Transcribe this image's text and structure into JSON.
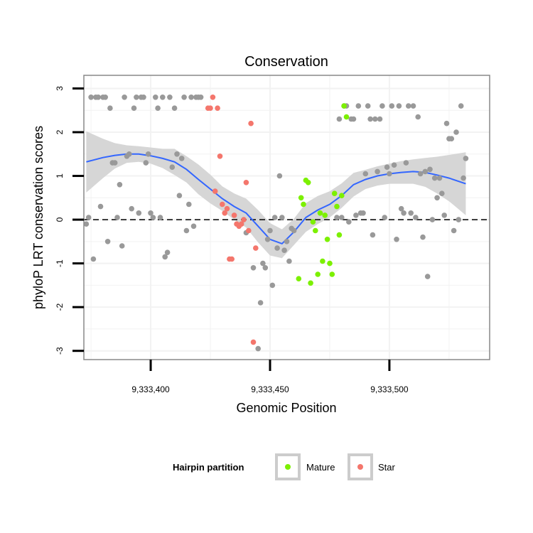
{
  "chart_data": {
    "type": "scatter",
    "title": "Conservation",
    "xlabel": "Genomic Position",
    "ylabel": "phyloP LRT conservation scores",
    "xlim": [
      9333372,
      9333542
    ],
    "ylim": [
      -3.2,
      3.3
    ],
    "x_ticks": [
      9333400,
      9333450,
      9333500
    ],
    "x_tick_labels": [
      "9,333,400",
      "9,333,450",
      "9,333,500"
    ],
    "y_ticks": [
      -3,
      -2,
      -1,
      0,
      1,
      2,
      3
    ],
    "y_tick_labels": [
      "-3",
      "-2",
      "-1",
      "0",
      "1",
      "2",
      "3"
    ],
    "reference_line": {
      "y": 0,
      "style": "dashed"
    },
    "colors": {
      "other": "#999999",
      "mature": "#7cf000",
      "star": "#f4766c",
      "smooth": "#3366ff",
      "ribbon": "#d6d6d6",
      "panel_border": "#888888",
      "grid": "#f2f2f2"
    },
    "legend": {
      "title": "Hairpin partition",
      "position": "bottom",
      "entries": [
        {
          "label": "Mature",
          "color": "#7cf000"
        },
        {
          "label": "Star",
          "color": "#f4766c"
        }
      ]
    },
    "series": [
      {
        "name": "Other",
        "color": "#999999",
        "points": [
          [
            9333373,
            -0.1
          ],
          [
            9333374,
            0.05
          ],
          [
            9333375,
            2.8
          ],
          [
            9333376,
            -0.9
          ],
          [
            9333377,
            2.8
          ],
          [
            9333378,
            2.8
          ],
          [
            9333379,
            0.3
          ],
          [
            9333380,
            2.8
          ],
          [
            9333381,
            2.8
          ],
          [
            9333382,
            -0.5
          ],
          [
            9333383,
            2.55
          ],
          [
            9333384,
            1.3
          ],
          [
            9333385,
            1.3
          ],
          [
            9333386,
            0.05
          ],
          [
            9333387,
            0.8
          ],
          [
            9333388,
            -0.6
          ],
          [
            9333389,
            2.8
          ],
          [
            9333390,
            1.45
          ],
          [
            9333391,
            1.5
          ],
          [
            9333392,
            0.25
          ],
          [
            9333393,
            2.55
          ],
          [
            9333394,
            2.8
          ],
          [
            9333395,
            0.15
          ],
          [
            9333396,
            2.8
          ],
          [
            9333397,
            2.8
          ],
          [
            9333398,
            1.3
          ],
          [
            9333399,
            1.5
          ],
          [
            9333400,
            0.15
          ],
          [
            9333401,
            0.05
          ],
          [
            9333402,
            2.8
          ],
          [
            9333403,
            2.55
          ],
          [
            9333404,
            0.05
          ],
          [
            9333405,
            2.8
          ],
          [
            9333406,
            -0.85
          ],
          [
            9333407,
            -0.75
          ],
          [
            9333408,
            2.8
          ],
          [
            9333409,
            1.2
          ],
          [
            9333410,
            2.55
          ],
          [
            9333411,
            1.5
          ],
          [
            9333412,
            0.55
          ],
          [
            9333413,
            1.4
          ],
          [
            9333414,
            2.8
          ],
          [
            9333415,
            -0.25
          ],
          [
            9333416,
            0.35
          ],
          [
            9333417,
            2.8
          ],
          [
            9333418,
            -0.15
          ],
          [
            9333419,
            2.8
          ],
          [
            9333420,
            2.8
          ],
          [
            9333421,
            2.8
          ],
          [
            9333440,
            -0.3
          ],
          [
            9333443,
            -1.1
          ],
          [
            9333445,
            -2.95
          ],
          [
            9333446,
            -1.9
          ],
          [
            9333447,
            -1.0
          ],
          [
            9333448,
            -1.1
          ],
          [
            9333449,
            -0.45
          ],
          [
            9333450,
            -0.25
          ],
          [
            9333451,
            -1.5
          ],
          [
            9333452,
            0.05
          ],
          [
            9333453,
            -0.65
          ],
          [
            9333454,
            1.0
          ],
          [
            9333455,
            0.05
          ],
          [
            9333456,
            -0.7
          ],
          [
            9333457,
            -0.5
          ],
          [
            9333458,
            -0.95
          ],
          [
            9333459,
            -0.2
          ],
          [
            9333460,
            -0.25
          ],
          [
            9333478,
            0.05
          ],
          [
            9333479,
            2.3
          ],
          [
            9333480,
            0.05
          ],
          [
            9333481,
            2.6
          ],
          [
            9333482,
            2.6
          ],
          [
            9333483,
            -0.05
          ],
          [
            9333484,
            2.3
          ],
          [
            9333485,
            2.3
          ],
          [
            9333486,
            0.1
          ],
          [
            9333487,
            2.6
          ],
          [
            9333488,
            0.15
          ],
          [
            9333489,
            0.15
          ],
          [
            9333490,
            1.05
          ],
          [
            9333491,
            2.6
          ],
          [
            9333492,
            2.3
          ],
          [
            9333493,
            -0.35
          ],
          [
            9333494,
            2.3
          ],
          [
            9333495,
            1.1
          ],
          [
            9333496,
            2.3
          ],
          [
            9333497,
            2.6
          ],
          [
            9333498,
            0.05
          ],
          [
            9333499,
            1.2
          ],
          [
            9333500,
            1.05
          ],
          [
            9333501,
            2.6
          ],
          [
            9333502,
            1.25
          ],
          [
            9333503,
            -0.45
          ],
          [
            9333504,
            2.6
          ],
          [
            9333505,
            0.25
          ],
          [
            9333506,
            0.15
          ],
          [
            9333507,
            1.3
          ],
          [
            9333508,
            2.6
          ],
          [
            9333509,
            0.15
          ],
          [
            9333510,
            2.6
          ],
          [
            9333511,
            0.05
          ],
          [
            9333512,
            2.35
          ],
          [
            9333513,
            1.05
          ],
          [
            9333514,
            -0.4
          ],
          [
            9333515,
            1.1
          ],
          [
            9333516,
            -1.3
          ],
          [
            9333517,
            1.15
          ],
          [
            9333518,
            0.0
          ],
          [
            9333519,
            0.95
          ],
          [
            9333520,
            0.5
          ],
          [
            9333521,
            0.95
          ],
          [
            9333522,
            0.6
          ],
          [
            9333523,
            0.1
          ],
          [
            9333524,
            2.2
          ],
          [
            9333525,
            1.85
          ],
          [
            9333526,
            1.85
          ],
          [
            9333527,
            -0.25
          ],
          [
            9333528,
            2.0
          ],
          [
            9333529,
            0.0
          ],
          [
            9333530,
            2.6
          ],
          [
            9333531,
            0.95
          ],
          [
            9333532,
            1.4
          ]
        ]
      },
      {
        "name": "Mature",
        "color": "#7cf000",
        "points": [
          [
            9333462,
            -1.35
          ],
          [
            9333463,
            0.5
          ],
          [
            9333464,
            0.35
          ],
          [
            9333465,
            0.9
          ],
          [
            9333466,
            0.85
          ],
          [
            9333467,
            -1.45
          ],
          [
            9333468,
            -0.05
          ],
          [
            9333469,
            -0.25
          ],
          [
            9333470,
            -1.25
          ],
          [
            9333471,
            0.15
          ],
          [
            9333472,
            -0.95
          ],
          [
            9333473,
            0.1
          ],
          [
            9333474,
            -0.45
          ],
          [
            9333475,
            -1.0
          ],
          [
            9333476,
            -1.25
          ],
          [
            9333477,
            0.6
          ],
          [
            9333478,
            0.3
          ],
          [
            9333479,
            -0.35
          ],
          [
            9333480,
            0.55
          ],
          [
            9333481,
            2.6
          ],
          [
            9333482,
            2.35
          ]
        ]
      },
      {
        "name": "Star",
        "color": "#f4766c",
        "points": [
          [
            9333424,
            2.55
          ],
          [
            9333425,
            2.55
          ],
          [
            9333426,
            2.8
          ],
          [
            9333427,
            0.65
          ],
          [
            9333428,
            2.55
          ],
          [
            9333429,
            1.45
          ],
          [
            9333430,
            0.35
          ],
          [
            9333431,
            0.15
          ],
          [
            9333432,
            0.25
          ],
          [
            9333433,
            -0.9
          ],
          [
            9333434,
            -0.9
          ],
          [
            9333435,
            0.1
          ],
          [
            9333436,
            -0.1
          ],
          [
            9333437,
            -0.15
          ],
          [
            9333438,
            -0.1
          ],
          [
            9333439,
            0.0
          ],
          [
            9333440,
            0.85
          ],
          [
            9333441,
            -0.25
          ],
          [
            9333442,
            2.2
          ],
          [
            9333443,
            -2.8
          ],
          [
            9333444,
            -0.65
          ]
        ]
      }
    ],
    "smooth_line": {
      "x": [
        9333373,
        9333380,
        9333385,
        9333390,
        9333395,
        9333400,
        9333405,
        9333410,
        9333415,
        9333420,
        9333425,
        9333430,
        9333435,
        9333440,
        9333445,
        9333450,
        9333455,
        9333460,
        9333465,
        9333470,
        9333475,
        9333480,
        9333485,
        9333490,
        9333495,
        9333500,
        9333505,
        9333510,
        9333515,
        9333520,
        9333525,
        9333532
      ],
      "y": [
        1.32,
        1.42,
        1.47,
        1.5,
        1.5,
        1.46,
        1.4,
        1.32,
        1.15,
        0.92,
        0.7,
        0.48,
        0.3,
        0.15,
        -0.15,
        -0.45,
        -0.55,
        -0.28,
        0.05,
        0.22,
        0.35,
        0.55,
        0.8,
        0.92,
        1.0,
        1.05,
        1.08,
        1.1,
        1.08,
        1.02,
        0.95,
        0.82
      ],
      "lower": [
        0.62,
        0.95,
        1.17,
        1.3,
        1.32,
        1.28,
        1.18,
        1.02,
        0.85,
        0.58,
        0.37,
        0.2,
        0.0,
        -0.18,
        -0.52,
        -0.82,
        -0.88,
        -0.58,
        -0.28,
        -0.1,
        0.05,
        0.27,
        0.53,
        0.7,
        0.78,
        0.82,
        0.82,
        0.82,
        0.75,
        0.6,
        0.42,
        0.1
      ],
      "upper": [
        2.02,
        1.85,
        1.75,
        1.7,
        1.68,
        1.65,
        1.62,
        1.62,
        1.45,
        1.26,
        1.03,
        0.76,
        0.6,
        0.48,
        0.22,
        -0.08,
        -0.22,
        0.02,
        0.38,
        0.54,
        0.65,
        0.83,
        1.07,
        1.14,
        1.22,
        1.28,
        1.34,
        1.38,
        1.41,
        1.44,
        1.48,
        1.54
      ]
    }
  }
}
